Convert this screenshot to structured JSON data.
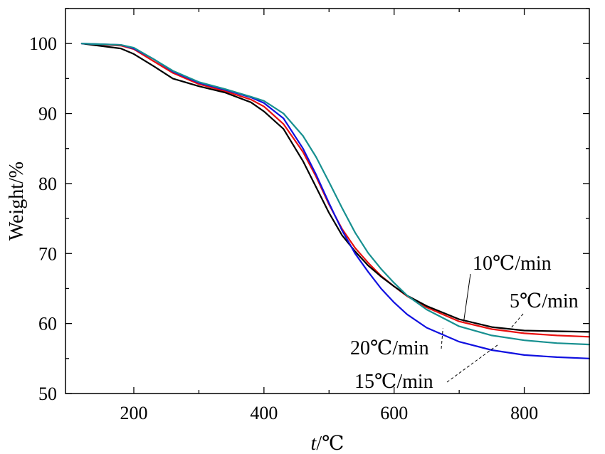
{
  "chart_data": {
    "type": "line",
    "title": "",
    "xlabel_italic": "t",
    "xlabel_rest": "/℃",
    "ylabel": "Weight/%",
    "xlim": [
      95,
      900
    ],
    "ylim": [
      50,
      105
    ],
    "x_ticks": [
      200,
      400,
      600,
      800
    ],
    "x_minor_ticks": [
      300,
      500,
      700
    ],
    "y_ticks": [
      50,
      60,
      70,
      80,
      90,
      100
    ],
    "y_minor_ticks": [
      55,
      65,
      75,
      85,
      95,
      105
    ],
    "grid": false,
    "series": [
      {
        "name": "5℃/min",
        "color": "#e8100f",
        "x": [
          120,
          180,
          200,
          230,
          260,
          300,
          340,
          380,
          400,
          430,
          460,
          480,
          500,
          520,
          540,
          560,
          580,
          600,
          620,
          650,
          700,
          750,
          800,
          850,
          900
        ],
        "y": [
          100,
          99.7,
          99.2,
          97.5,
          95.8,
          94.2,
          93.2,
          92.0,
          91.0,
          88.5,
          84.5,
          81.0,
          77.0,
          73.5,
          70.8,
          68.7,
          66.8,
          65.3,
          63.9,
          62.3,
          60.3,
          59.2,
          58.6,
          58.3,
          58.1
        ]
      },
      {
        "name": "10℃/min",
        "color": "#000000",
        "x": [
          120,
          180,
          200,
          230,
          260,
          300,
          340,
          380,
          400,
          430,
          460,
          480,
          500,
          520,
          540,
          560,
          580,
          600,
          620,
          650,
          700,
          750,
          800,
          850,
          900
        ],
        "y": [
          100,
          99.3,
          98.5,
          96.8,
          95.0,
          93.9,
          93.0,
          91.6,
          90.3,
          87.8,
          83.2,
          79.5,
          75.8,
          72.6,
          70.3,
          68.3,
          66.7,
          65.3,
          64.0,
          62.5,
          60.6,
          59.5,
          59.0,
          58.9,
          58.8
        ]
      },
      {
        "name": "15℃/min",
        "color": "#1010e0",
        "x": [
          120,
          180,
          200,
          230,
          260,
          300,
          340,
          380,
          400,
          430,
          460,
          480,
          500,
          520,
          540,
          560,
          580,
          600,
          620,
          650,
          700,
          750,
          800,
          850,
          900
        ],
        "y": [
          100,
          99.8,
          99.3,
          97.8,
          96.0,
          94.4,
          93.4,
          92.3,
          91.5,
          89.3,
          85.0,
          81.3,
          77.2,
          73.3,
          70.0,
          67.4,
          65.0,
          63.0,
          61.3,
          59.4,
          57.4,
          56.2,
          55.5,
          55.2,
          55.0
        ]
      },
      {
        "name": "20℃/min",
        "color": "#179090",
        "x": [
          120,
          180,
          200,
          230,
          260,
          300,
          340,
          380,
          400,
          430,
          460,
          480,
          500,
          520,
          540,
          560,
          580,
          600,
          620,
          650,
          700,
          750,
          800,
          850,
          900
        ],
        "y": [
          100,
          99.8,
          99.4,
          97.8,
          96.1,
          94.5,
          93.5,
          92.4,
          91.8,
          90.0,
          86.8,
          83.8,
          80.2,
          76.5,
          73.0,
          70.1,
          67.8,
          65.8,
          64.0,
          62.0,
          59.6,
          58.3,
          57.6,
          57.2,
          57.0
        ]
      }
    ],
    "annotations": [
      {
        "label": "10℃/min",
        "target": [
          707,
          60.3
        ]
      },
      {
        "label": "5℃/min",
        "target": [
          780,
          59.4
        ]
      },
      {
        "label": "20℃/min",
        "target": [
          675,
          59.3
        ]
      },
      {
        "label": "15℃/min",
        "target": [
          760,
          57.0
        ]
      }
    ]
  }
}
